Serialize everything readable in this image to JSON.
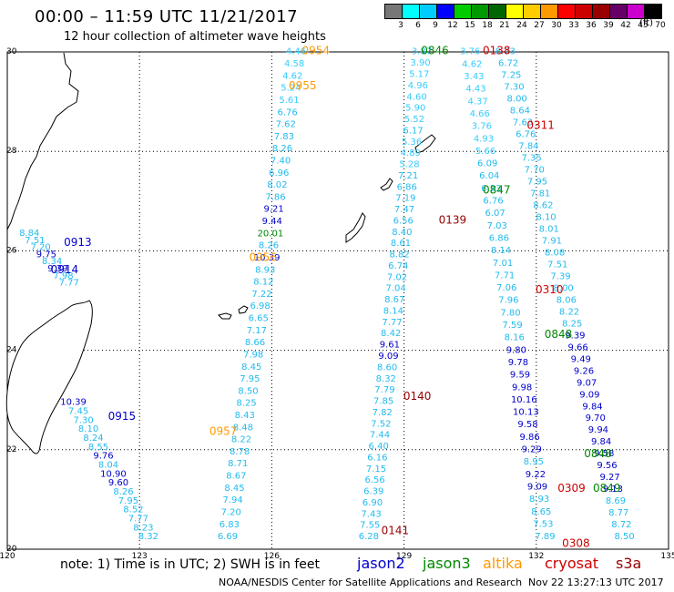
{
  "header": {
    "title": "00:00 – 11:59 UTC 11/21/2017",
    "subtitle": "12 hour collection of altimeter wave heights"
  },
  "legend": {
    "unit": "(ft)",
    "colors": [
      "#777777",
      "#00ffff",
      "#00ccff",
      "#0000ff",
      "#00cc00",
      "#009900",
      "#006600",
      "#ffff00",
      "#ffcc00",
      "#ff9900",
      "#ff0000",
      "#cc0000",
      "#990000",
      "#660066",
      "#cc00cc",
      "#000000"
    ],
    "labels": [
      "3",
      "6",
      "9",
      "12",
      "15",
      "18",
      "21",
      "24",
      "27",
      "30",
      "33",
      "36",
      "39",
      "42",
      "45",
      "70"
    ]
  },
  "map": {
    "lat_min": 20,
    "lat_max": 30,
    "lon_min": 120,
    "lon_max": 135,
    "lat_labels": [
      "30",
      "28",
      "26",
      "24",
      "22",
      "20"
    ],
    "lon_labels": [
      "120",
      "123",
      "126",
      "129",
      "132",
      "135"
    ]
  },
  "footer": {
    "note": "note: 1) Time is in UTC; 2) SWH is in feet",
    "satellites": [
      {
        "name": "jason2",
        "color": "#0000cc"
      },
      {
        "name": "jason3",
        "color": "#008800"
      },
      {
        "name": "altika",
        "color": "#ff9900"
      },
      {
        "name": "cryosat",
        "color": "#cc0000"
      },
      {
        "name": "s3a",
        "color": "#990000"
      }
    ],
    "credit": "NOAA/NESDIS Center for Satellite Applications and Research",
    "timestamp": "Nov 22 13:27:13 UTC 2017"
  },
  "passes": [
    {
      "name": "0913",
      "color": "#0000cc",
      "lon": 121.6,
      "lat": 26.1
    },
    {
      "name": "0914",
      "color": "#0000cc",
      "lon": 121.3,
      "lat": 25.55
    },
    {
      "name": "0915",
      "color": "#0000cc",
      "lon": 122.6,
      "lat": 22.6
    },
    {
      "name": "0954",
      "color": "#ff9900",
      "lon": 127.0,
      "lat": 29.95
    },
    {
      "name": "0955",
      "color": "#ff9900",
      "lon": 126.7,
      "lat": 29.25
    },
    {
      "name": "0956",
      "color": "#ff9900",
      "lon": 125.8,
      "lat": 25.8
    },
    {
      "name": "0957",
      "color": "#ff9900",
      "lon": 124.9,
      "lat": 22.3
    },
    {
      "name": "0846",
      "color": "#008800",
      "lon": 129.7,
      "lat": 29.95
    },
    {
      "name": "0847",
      "color": "#008800",
      "lon": 131.1,
      "lat": 27.15
    },
    {
      "name": "0848",
      "color": "#008800",
      "lon": 132.5,
      "lat": 24.25
    },
    {
      "name": "0848",
      "color": "#008800",
      "lon": 133.4,
      "lat": 21.85
    },
    {
      "name": "0849",
      "color": "#008800",
      "lon": 133.6,
      "lat": 21.15
    },
    {
      "name": "0138",
      "color": "#cc0000",
      "lon": 131.1,
      "lat": 29.95
    },
    {
      "name": "0311",
      "color": "#cc0000",
      "lon": 132.1,
      "lat": 28.45
    },
    {
      "name": "0310",
      "color": "#cc0000",
      "lon": 132.3,
      "lat": 25.15
    },
    {
      "name": "0309",
      "color": "#cc0000",
      "lon": 132.8,
      "lat": 21.15
    },
    {
      "name": "0308",
      "color": "#cc0000",
      "lon": 132.9,
      "lat": 20.05
    },
    {
      "name": "0139",
      "color": "#990000",
      "lon": 130.1,
      "lat": 26.55
    },
    {
      "name": "0140",
      "color": "#990000",
      "lon": 129.3,
      "lat": 23.0
    },
    {
      "name": "0141",
      "color": "#990000",
      "lon": 128.8,
      "lat": 20.3
    }
  ],
  "tracks": [
    {
      "sat": "jason2",
      "color": "#0000cc",
      "lon1": 120.5,
      "lat1": 26.3,
      "lon2": 121.4,
      "lat2": 25.3,
      "values": [
        "8.84",
        "7.51",
        "7.20",
        "9.75",
        "8.34",
        "9.39",
        "7.98",
        "7.77"
      ]
    },
    {
      "sat": "jason2",
      "color": "#0000cc",
      "lon1": 121.5,
      "lat1": 22.9,
      "lon2": 123.2,
      "lat2": 20.2,
      "values": [
        "10.39",
        "7.45",
        "7.30",
        "8.10",
        "8.24",
        "8.55",
        "9.76",
        "8.04",
        "10.90",
        "9.60",
        "8.26",
        "7.95",
        "8.52",
        "7.77",
        "8.23",
        "8.32"
      ]
    },
    {
      "sat": "altika",
      "color": "#ff9900",
      "lon1": 126.55,
      "lat1": 29.95,
      "lon2": 125.0,
      "lat2": 20.2,
      "values": [
        "4.46",
        "4.58",
        "4.62",
        "5.24",
        "5.61",
        "6.76",
        "7.62",
        "7.83",
        "8.26",
        "7.40",
        "6.96",
        "8.02",
        "7.86",
        "9.21",
        "9.44",
        "20.01",
        "8.26",
        "10.39",
        "8.93",
        "8.12",
        "7.22",
        "6.98",
        "6.65",
        "7.17",
        "8.66",
        "7.98",
        "8.45",
        "7.95",
        "8.50",
        "8.25",
        "8.43",
        "8.48",
        "8.22",
        "8.78",
        "8.71",
        "8.67",
        "8.45",
        "7.94",
        "7.20",
        "6.83",
        "6.69"
      ]
    },
    {
      "sat": "jason3",
      "color": "#008800",
      "lon1": 129.4,
      "lat1": 29.95,
      "lon2": 128.2,
      "lat2": 20.2,
      "values": [
        "3.87",
        "3.90",
        "5.17",
        "4.96",
        "4.60",
        "5.90",
        "5.52",
        "6.17",
        "5.36",
        "4.89",
        "5.28",
        "7.21",
        "6.86",
        "7.19",
        "7.47",
        "6.56",
        "8.40",
        "8.61",
        "8.82",
        "6.74",
        "7.02",
        "7.04",
        "8.67",
        "8.14",
        "7.77",
        "8.42",
        "9.61",
        "9.09",
        "8.60",
        "8.32",
        "7.79",
        "7.85",
        "7.82",
        "7.52",
        "7.44",
        "6.40",
        "6.16",
        "7.15",
        "6.56",
        "6.39",
        "6.90",
        "7.43",
        "7.55",
        "6.28"
      ]
    },
    {
      "sat": "jason3",
      "color": "#008800",
      "lon1": 130.5,
      "lat1": 29.95,
      "lon2": 132.2,
      "lat2": 20.2,
      "values": [
        "3.76",
        "4.62",
        "3.43",
        "4.43",
        "4.37",
        "4.66",
        "3.76",
        "4.93",
        "5.66",
        "6.09",
        "6.04",
        "6.33",
        "6.76",
        "6.07",
        "7.03",
        "6.86",
        "8.14",
        "7.01",
        "7.71",
        "7.06",
        "7.96",
        "7.80",
        "7.59",
        "8.16",
        "9.80",
        "9.78",
        "9.59",
        "9.98",
        "10.16",
        "10.13",
        "9.58",
        "9.86",
        "9.29",
        "8.95",
        "9.22",
        "9.09",
        "8.93",
        "8.65",
        "7.53",
        "7.89"
      ]
    },
    {
      "sat": "cryosat",
      "color": "#cc0000",
      "lon1": 131.3,
      "lat1": 29.95,
      "lon2": 134.0,
      "lat2": 20.2,
      "values": [
        "8.73",
        "6.72",
        "7.25",
        "7.30",
        "8.00",
        "8.64",
        "7.63",
        "6.76",
        "7.84",
        "7.35",
        "7.70",
        "7.95",
        "7.81",
        "8.62",
        "8.10",
        "8.01",
        "7.91",
        "8.08",
        "7.51",
        "7.39",
        "8.00",
        "8.06",
        "8.22",
        "8.25",
        "9.39",
        "9.66",
        "9.49",
        "9.26",
        "9.07",
        "9.09",
        "9.84",
        "9.70",
        "9.94",
        "9.84",
        "9.58",
        "9.56",
        "9.27",
        "9.13",
        "8.69",
        "8.77",
        "8.72",
        "8.50"
      ]
    }
  ]
}
